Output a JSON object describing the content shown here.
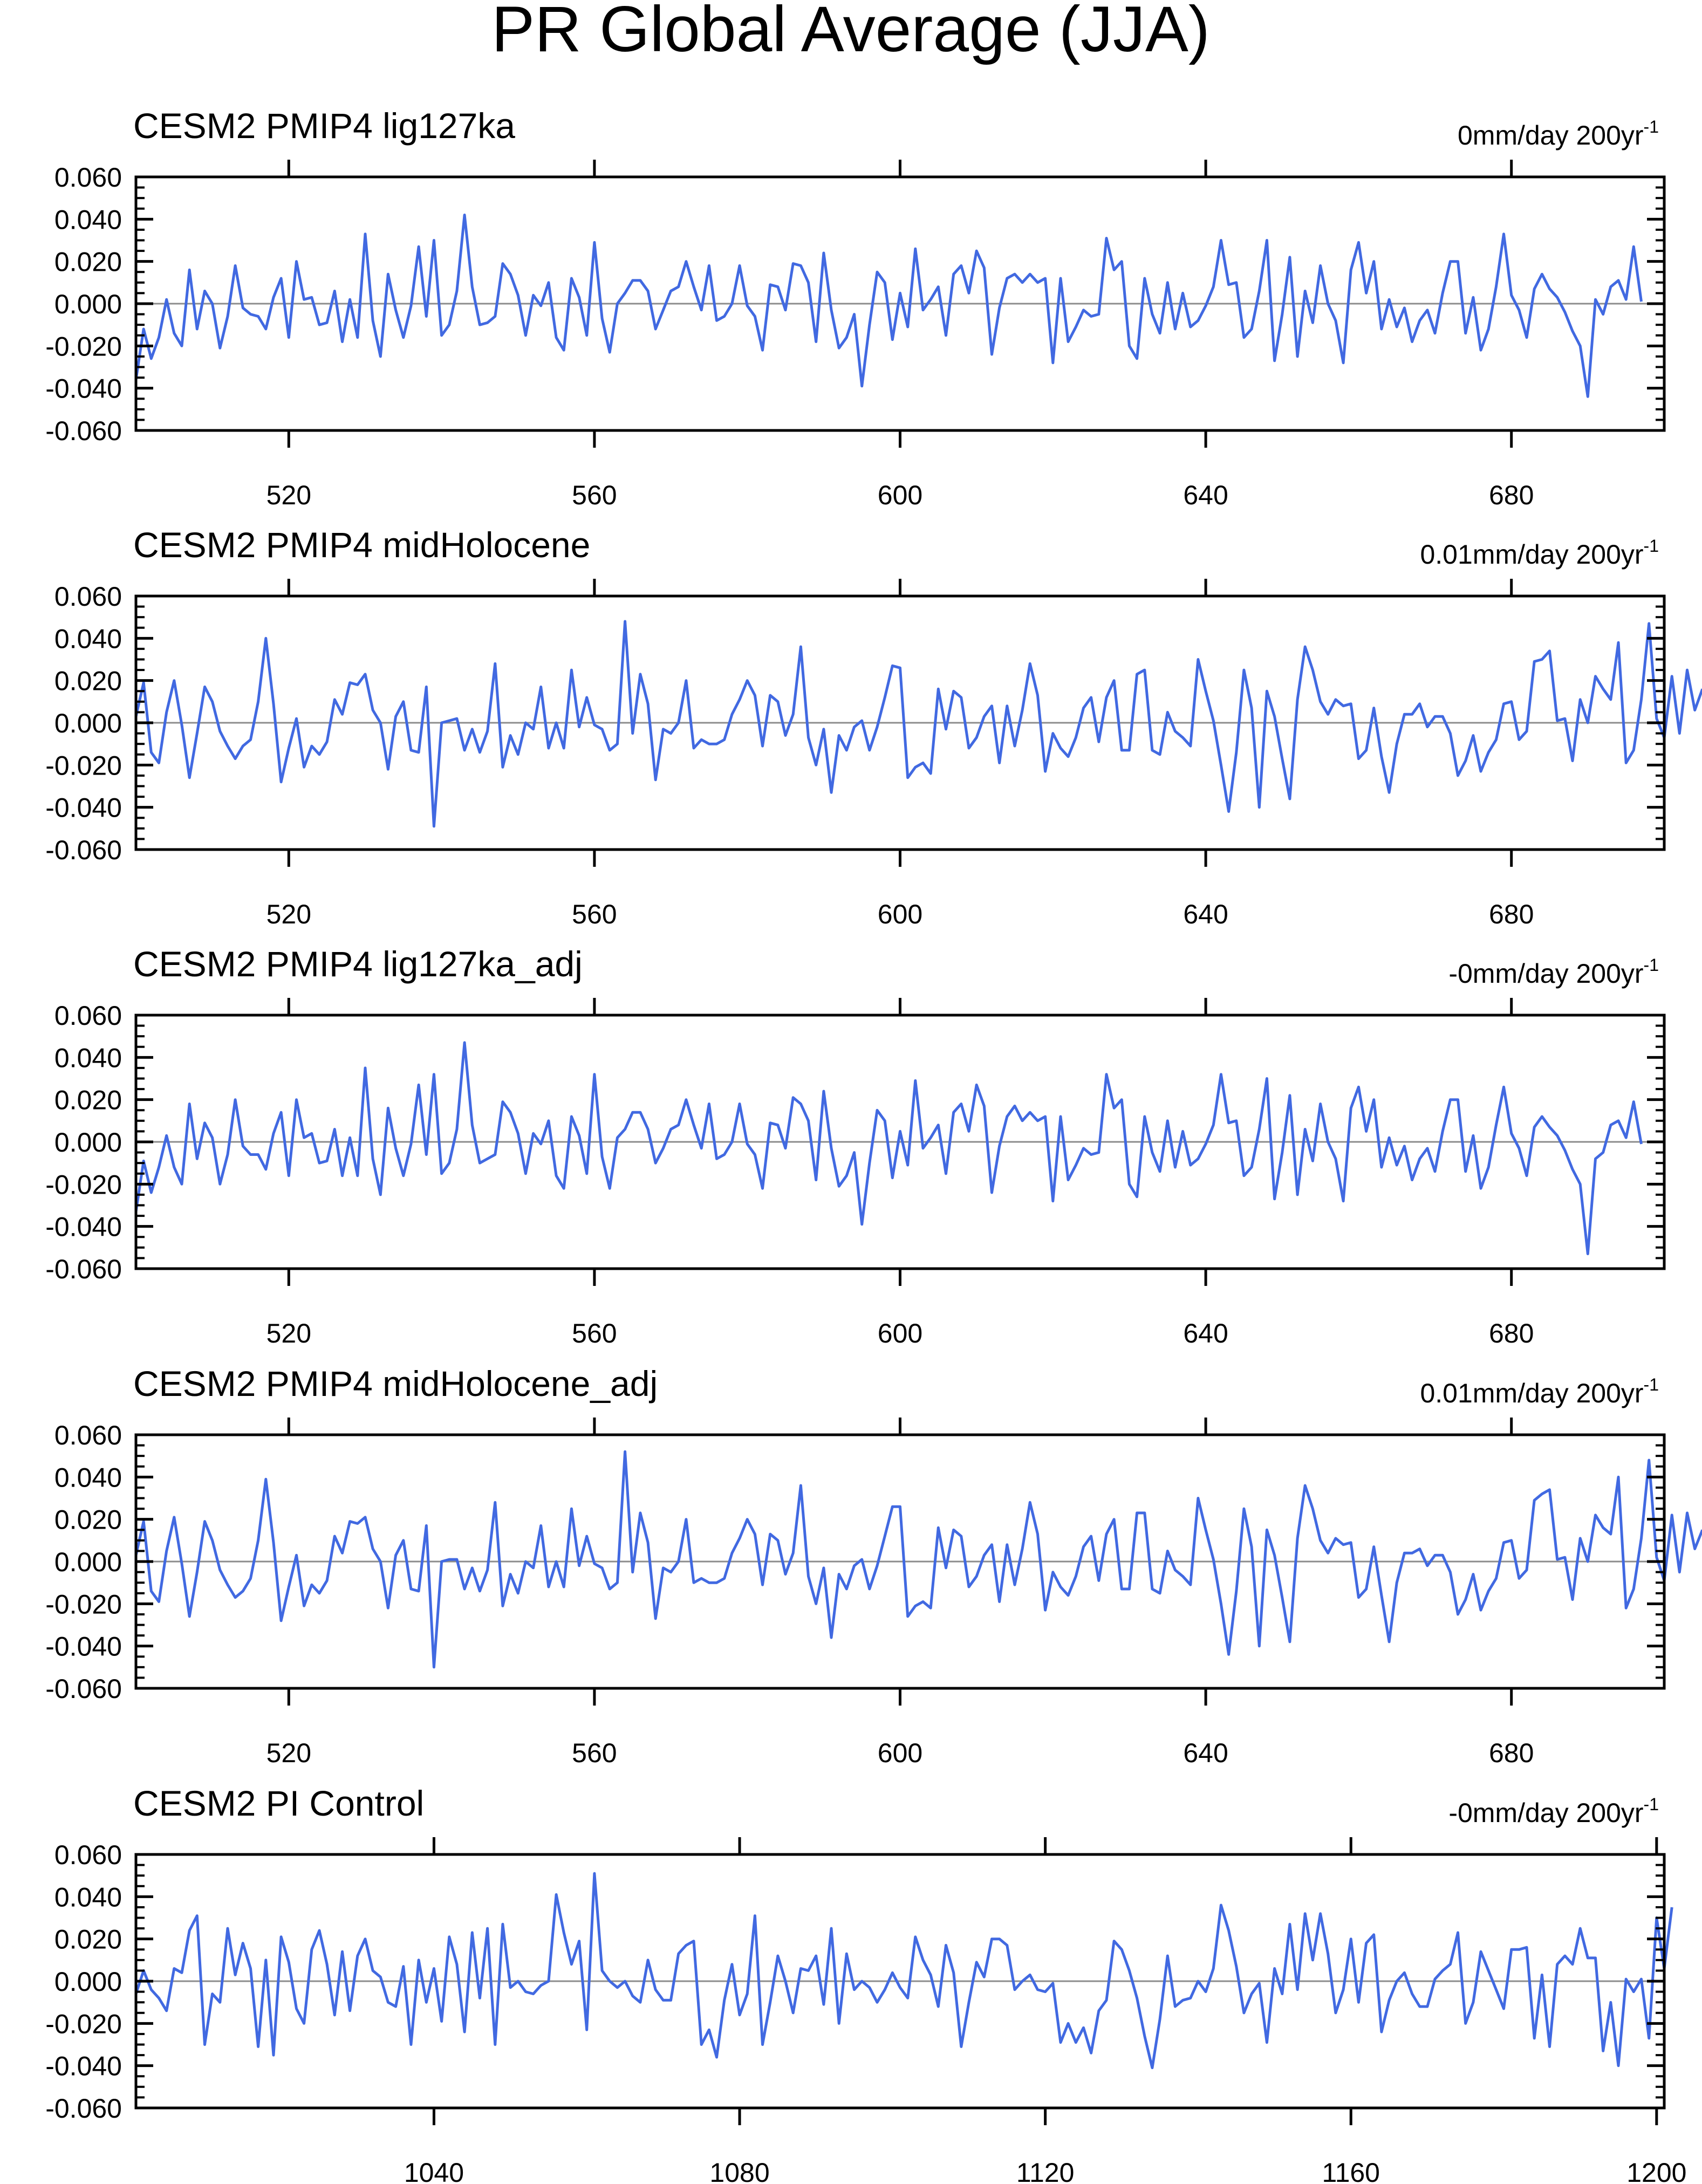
{
  "figure_title": "PR Global Average (JJA)",
  "colors": {
    "series": "#4169e1",
    "zero_line": "#8c8c8c",
    "axis": "#000000"
  },
  "chart_data": [
    {
      "type": "line",
      "title": "CESM2 PMIP4 lig127ka",
      "trend_label": {
        "value": "0mm/day 200yr",
        "exponent": "-1"
      },
      "xlim": [
        500,
        700
      ],
      "ylim": [
        -0.06,
        0.06
      ],
      "x_start": 500,
      "x_step": 1,
      "xticks": [
        520,
        560,
        600,
        640,
        680
      ],
      "yticks": [
        "0.060",
        "0.040",
        "0.020",
        "0.000",
        "-0.020",
        "-0.040",
        "-0.060"
      ],
      "values": [
        -0.036,
        -0.012,
        -0.026,
        -0.016,
        0.002,
        -0.014,
        -0.02,
        0.016,
        -0.012,
        0.006,
        0.0,
        -0.021,
        -0.006,
        0.018,
        -0.002,
        -0.005,
        -0.006,
        -0.012,
        0.003,
        0.012,
        -0.016,
        0.02,
        0.002,
        0.003,
        -0.01,
        -0.009,
        0.006,
        -0.018,
        0.002,
        -0.016,
        0.033,
        -0.008,
        -0.025,
        0.014,
        -0.003,
        -0.016,
        -0.001,
        0.027,
        -0.006,
        0.03,
        -0.015,
        -0.01,
        0.006,
        0.042,
        0.008,
        -0.01,
        -0.009,
        -0.006,
        0.019,
        0.014,
        0.004,
        -0.015,
        0.004,
        -0.001,
        0.01,
        -0.016,
        -0.022,
        0.012,
        0.003,
        -0.015,
        0.029,
        -0.007,
        -0.023,
        0.0,
        0.005,
        0.011,
        0.011,
        0.006,
        -0.012,
        -0.003,
        0.006,
        0.008,
        0.02,
        0.008,
        -0.003,
        0.018,
        -0.008,
        -0.006,
        0.0,
        0.018,
        -0.001,
        -0.006,
        -0.022,
        0.009,
        0.008,
        -0.003,
        0.019,
        0.018,
        0.01,
        -0.018,
        0.024,
        -0.003,
        -0.021,
        -0.016,
        -0.005,
        -0.039,
        -0.01,
        0.015,
        0.01,
        -0.017,
        0.005,
        -0.011,
        0.026,
        -0.003,
        0.002,
        0.008,
        -0.015,
        0.014,
        0.018,
        0.005,
        0.025,
        0.017,
        -0.024,
        -0.002,
        0.012,
        0.014,
        0.01,
        0.014,
        0.01,
        0.012,
        -0.028,
        0.012,
        -0.018,
        -0.011,
        -0.003,
        -0.006,
        -0.005,
        0.031,
        0.016,
        0.02,
        -0.02,
        -0.026,
        0.012,
        -0.005,
        -0.014,
        0.01,
        -0.012,
        0.005,
        -0.011,
        -0.008,
        -0.001,
        0.008,
        0.03,
        0.009,
        0.01,
        -0.016,
        -0.012,
        0.006,
        0.03,
        -0.027,
        -0.005,
        0.022,
        -0.025,
        0.006,
        -0.009,
        0.018,
        0.0,
        -0.008,
        -0.028,
        0.016,
        0.029,
        0.005,
        0.02,
        -0.012,
        0.002,
        -0.011,
        -0.002,
        -0.018,
        -0.008,
        -0.003,
        -0.014,
        0.005,
        0.02,
        0.02,
        -0.014,
        0.003,
        -0.022,
        -0.012,
        0.008,
        0.033,
        0.004,
        -0.003,
        -0.016,
        0.007,
        0.014,
        0.007,
        0.003,
        -0.004,
        -0.013,
        -0.02,
        -0.044,
        0.002,
        -0.005,
        0.008,
        0.011,
        0.002,
        0.027,
        0.001
      ]
    },
    {
      "type": "line",
      "title": "CESM2 PMIP4 midHolocene",
      "trend_label": {
        "value": "0.01mm/day 200yr",
        "exponent": "-1"
      },
      "xlim": [
        500,
        700
      ],
      "ylim": [
        -0.06,
        0.06
      ],
      "x_start": 500,
      "x_step": 1,
      "xticks": [
        520,
        560,
        600,
        640,
        680
      ],
      "yticks": [
        "0.060",
        "0.040",
        "0.020",
        "0.000",
        "-0.020",
        "-0.040",
        "-0.060"
      ],
      "values": [
        0.003,
        0.019,
        -0.014,
        -0.019,
        0.005,
        0.02,
        -0.001,
        -0.026,
        -0.005,
        0.017,
        0.01,
        -0.004,
        -0.011,
        -0.017,
        -0.011,
        -0.008,
        0.01,
        0.04,
        0.009,
        -0.028,
        -0.012,
        0.002,
        -0.021,
        -0.011,
        -0.015,
        -0.009,
        0.011,
        0.004,
        0.019,
        0.018,
        0.023,
        0.006,
        0.0,
        -0.022,
        0.003,
        0.01,
        -0.013,
        -0.014,
        0.017,
        -0.049,
        0.0,
        0.001,
        0.002,
        -0.013,
        -0.003,
        -0.014,
        -0.004,
        0.028,
        -0.021,
        -0.006,
        -0.015,
        0.0,
        -0.003,
        0.017,
        -0.012,
        0.0,
        -0.012,
        0.025,
        -0.002,
        0.012,
        -0.001,
        -0.003,
        -0.013,
        -0.01,
        0.048,
        -0.005,
        0.023,
        0.009,
        -0.027,
        -0.003,
        -0.005,
        0.0,
        0.02,
        -0.012,
        -0.008,
        -0.01,
        -0.01,
        -0.008,
        0.004,
        0.011,
        0.02,
        0.013,
        -0.011,
        0.013,
        0.01,
        -0.006,
        0.004,
        0.036,
        -0.007,
        -0.02,
        -0.003,
        -0.033,
        -0.006,
        -0.013,
        -0.002,
        0.001,
        -0.013,
        -0.002,
        0.012,
        0.027,
        0.026,
        -0.026,
        -0.021,
        -0.019,
        -0.024,
        0.016,
        -0.003,
        0.015,
        0.012,
        -0.012,
        -0.007,
        0.003,
        0.008,
        -0.019,
        0.008,
        -0.011,
        0.006,
        0.028,
        0.013,
        -0.023,
        -0.005,
        -0.012,
        -0.016,
        -0.007,
        0.007,
        0.012,
        -0.009,
        0.012,
        0.02,
        -0.013,
        -0.013,
        0.023,
        0.025,
        -0.013,
        -0.015,
        0.005,
        -0.004,
        -0.007,
        -0.011,
        0.03,
        0.015,
        0.001,
        -0.02,
        -0.042,
        -0.014,
        0.025,
        0.007,
        -0.04,
        0.015,
        0.003,
        -0.017,
        -0.036,
        0.011,
        0.036,
        0.025,
        0.01,
        0.004,
        0.011,
        0.008,
        0.009,
        -0.017,
        -0.013,
        0.007,
        -0.016,
        -0.033,
        -0.01,
        0.004,
        0.004,
        0.009,
        -0.002,
        0.003,
        0.003,
        -0.005,
        -0.025,
        -0.018,
        -0.006,
        -0.023,
        -0.014,
        -0.008,
        0.009,
        0.01,
        -0.008,
        -0.004,
        0.029,
        0.03,
        0.034,
        0.001,
        0.002,
        -0.018,
        0.011,
        0.0,
        0.022,
        0.016,
        0.011,
        0.038,
        -0.019,
        -0.013,
        0.011,
        0.047,
        0.002,
        -0.007,
        0.022,
        -0.005,
        0.025,
        0.006,
        0.016
      ]
    },
    {
      "type": "line",
      "title": "CESM2 PMIP4 lig127ka_adj",
      "trend_label": {
        "value": "-0mm/day 200yr",
        "exponent": "-1"
      },
      "xlim": [
        500,
        700
      ],
      "ylim": [
        -0.06,
        0.06
      ],
      "x_start": 500,
      "x_step": 1,
      "xticks": [
        520,
        560,
        600,
        640,
        680
      ],
      "yticks": [
        "0.060",
        "0.040",
        "0.020",
        "0.000",
        "-0.020",
        "-0.040",
        "-0.060"
      ],
      "values": [
        -0.033,
        -0.009,
        -0.024,
        -0.012,
        0.003,
        -0.012,
        -0.02,
        0.018,
        -0.008,
        0.009,
        0.002,
        -0.02,
        -0.006,
        0.02,
        -0.002,
        -0.006,
        -0.006,
        -0.013,
        0.004,
        0.014,
        -0.016,
        0.02,
        0.002,
        0.004,
        -0.01,
        -0.009,
        0.006,
        -0.016,
        0.002,
        -0.016,
        0.035,
        -0.008,
        -0.025,
        0.016,
        -0.003,
        -0.016,
        -0.001,
        0.027,
        -0.006,
        0.032,
        -0.015,
        -0.01,
        0.006,
        0.047,
        0.008,
        -0.01,
        -0.008,
        -0.006,
        0.019,
        0.014,
        0.004,
        -0.015,
        0.004,
        -0.001,
        0.01,
        -0.016,
        -0.022,
        0.012,
        0.003,
        -0.015,
        0.032,
        -0.007,
        -0.022,
        0.002,
        0.006,
        0.014,
        0.014,
        0.006,
        -0.01,
        -0.003,
        0.006,
        0.008,
        0.02,
        0.008,
        -0.003,
        0.018,
        -0.008,
        -0.006,
        0.0,
        0.018,
        -0.001,
        -0.006,
        -0.022,
        0.009,
        0.008,
        -0.003,
        0.021,
        0.018,
        0.01,
        -0.018,
        0.024,
        -0.003,
        -0.021,
        -0.016,
        -0.005,
        -0.039,
        -0.01,
        0.015,
        0.01,
        -0.017,
        0.005,
        -0.011,
        0.029,
        -0.003,
        0.002,
        0.008,
        -0.015,
        0.014,
        0.018,
        0.005,
        0.027,
        0.017,
        -0.024,
        -0.002,
        0.012,
        0.017,
        0.01,
        0.014,
        0.01,
        0.012,
        -0.028,
        0.012,
        -0.018,
        -0.011,
        -0.003,
        -0.006,
        -0.005,
        0.032,
        0.016,
        0.02,
        -0.02,
        -0.026,
        0.012,
        -0.005,
        -0.014,
        0.01,
        -0.012,
        0.005,
        -0.011,
        -0.008,
        -0.001,
        0.008,
        0.032,
        0.009,
        0.01,
        -0.016,
        -0.012,
        0.006,
        0.03,
        -0.027,
        -0.005,
        0.022,
        -0.025,
        0.006,
        -0.009,
        0.018,
        0.0,
        -0.008,
        -0.028,
        0.016,
        0.026,
        0.005,
        0.02,
        -0.012,
        0.002,
        -0.011,
        -0.002,
        -0.018,
        -0.008,
        -0.003,
        -0.014,
        0.005,
        0.02,
        0.02,
        -0.014,
        0.003,
        -0.022,
        -0.012,
        0.008,
        0.026,
        0.004,
        -0.003,
        -0.016,
        0.007,
        0.012,
        0.007,
        0.003,
        -0.004,
        -0.013,
        -0.02,
        -0.053,
        -0.008,
        -0.005,
        0.008,
        0.01,
        0.002,
        0.019,
        -0.001
      ]
    },
    {
      "type": "line",
      "title": "CESM2 PMIP4 midHolocene_adj",
      "trend_label": {
        "value": "0.01mm/day 200yr",
        "exponent": "-1"
      },
      "xlim": [
        500,
        700
      ],
      "ylim": [
        -0.06,
        0.06
      ],
      "x_start": 500,
      "x_step": 1,
      "xticks": [
        520,
        560,
        600,
        640,
        680
      ],
      "yticks": [
        "0.060",
        "0.040",
        "0.020",
        "0.000",
        "-0.020",
        "-0.040",
        "-0.060"
      ],
      "values": [
        0.003,
        0.019,
        -0.014,
        -0.019,
        0.005,
        0.021,
        -0.001,
        -0.026,
        -0.005,
        0.019,
        0.01,
        -0.004,
        -0.011,
        -0.017,
        -0.014,
        -0.008,
        0.01,
        0.039,
        0.009,
        -0.028,
        -0.012,
        0.003,
        -0.021,
        -0.011,
        -0.015,
        -0.009,
        0.012,
        0.004,
        0.019,
        0.018,
        0.021,
        0.006,
        0.0,
        -0.022,
        0.003,
        0.01,
        -0.013,
        -0.014,
        0.017,
        -0.05,
        0.0,
        0.001,
        0.001,
        -0.013,
        -0.003,
        -0.014,
        -0.004,
        0.028,
        -0.021,
        -0.006,
        -0.015,
        0.0,
        -0.003,
        0.017,
        -0.012,
        0.0,
        -0.012,
        0.025,
        -0.002,
        0.012,
        -0.001,
        -0.003,
        -0.013,
        -0.01,
        0.052,
        -0.005,
        0.023,
        0.009,
        -0.027,
        -0.003,
        -0.005,
        0.0,
        0.02,
        -0.01,
        -0.008,
        -0.01,
        -0.01,
        -0.008,
        0.004,
        0.011,
        0.02,
        0.013,
        -0.011,
        0.013,
        0.01,
        -0.006,
        0.004,
        0.036,
        -0.007,
        -0.02,
        -0.003,
        -0.036,
        -0.006,
        -0.013,
        -0.002,
        0.001,
        -0.013,
        -0.002,
        0.012,
        0.026,
        0.026,
        -0.026,
        -0.021,
        -0.019,
        -0.022,
        0.016,
        -0.003,
        0.015,
        0.012,
        -0.012,
        -0.007,
        0.003,
        0.008,
        -0.019,
        0.008,
        -0.011,
        0.006,
        0.028,
        0.013,
        -0.023,
        -0.005,
        -0.012,
        -0.016,
        -0.007,
        0.007,
        0.012,
        -0.009,
        0.013,
        0.02,
        -0.013,
        -0.013,
        0.023,
        0.023,
        -0.013,
        -0.015,
        0.005,
        -0.004,
        -0.007,
        -0.011,
        0.03,
        0.015,
        0.001,
        -0.02,
        -0.044,
        -0.014,
        0.025,
        0.007,
        -0.04,
        0.015,
        0.003,
        -0.017,
        -0.038,
        0.011,
        0.036,
        0.025,
        0.01,
        0.004,
        0.011,
        0.008,
        0.009,
        -0.017,
        -0.013,
        0.007,
        -0.016,
        -0.038,
        -0.01,
        0.004,
        0.004,
        0.006,
        -0.002,
        0.003,
        0.003,
        -0.005,
        -0.025,
        -0.018,
        -0.006,
        -0.023,
        -0.014,
        -0.008,
        0.009,
        0.01,
        -0.008,
        -0.004,
        0.029,
        0.032,
        0.034,
        0.001,
        0.002,
        -0.018,
        0.011,
        0.0,
        0.022,
        0.016,
        0.013,
        0.04,
        -0.022,
        -0.013,
        0.011,
        0.048,
        0.002,
        -0.009,
        0.022,
        -0.005,
        0.023,
        0.006,
        0.015
      ]
    },
    {
      "type": "line",
      "title": "CESM2 PI Control",
      "trend_label": {
        "value": "-0mm/day 200yr",
        "exponent": "-1"
      },
      "xlim": [
        1001,
        1201
      ],
      "ylim": [
        -0.06,
        0.06
      ],
      "x_start": 1001,
      "x_step": 1,
      "xticks": [
        1040,
        1080,
        1120,
        1160,
        1200
      ],
      "yticks": [
        "0.060",
        "0.040",
        "0.020",
        "0.000",
        "-0.020",
        "-0.040",
        "-0.060"
      ],
      "values": [
        -0.006,
        0.005,
        -0.004,
        -0.008,
        -0.014,
        0.006,
        0.004,
        0.024,
        0.031,
        -0.03,
        -0.006,
        -0.01,
        0.025,
        0.003,
        0.018,
        0.006,
        -0.031,
        0.01,
        -0.035,
        0.021,
        0.009,
        -0.013,
        -0.02,
        0.015,
        0.024,
        0.008,
        -0.016,
        0.014,
        -0.014,
        0.012,
        0.02,
        0.005,
        0.002,
        -0.01,
        -0.012,
        0.007,
        -0.03,
        0.01,
        -0.01,
        0.006,
        -0.019,
        0.021,
        0.008,
        -0.024,
        0.023,
        -0.008,
        0.025,
        -0.03,
        0.027,
        -0.003,
        0.0,
        -0.005,
        -0.006,
        -0.002,
        0.0,
        0.041,
        0.023,
        0.008,
        0.019,
        -0.023,
        0.051,
        0.005,
        0.0,
        -0.003,
        0.0,
        -0.007,
        -0.01,
        0.01,
        -0.004,
        -0.009,
        -0.009,
        0.013,
        0.017,
        0.019,
        -0.03,
        -0.023,
        -0.036,
        -0.009,
        0.008,
        -0.016,
        -0.006,
        0.031,
        -0.03,
        -0.01,
        0.012,
        0.0,
        -0.015,
        0.006,
        0.005,
        0.012,
        -0.011,
        0.025,
        -0.02,
        0.013,
        -0.004,
        0.0,
        -0.003,
        -0.01,
        -0.004,
        0.004,
        -0.003,
        -0.008,
        0.021,
        0.01,
        0.003,
        -0.012,
        0.017,
        0.004,
        -0.031,
        -0.01,
        0.009,
        0.002,
        0.02,
        0.02,
        0.017,
        -0.004,
        0.0,
        0.003,
        -0.004,
        -0.005,
        -0.001,
        -0.029,
        -0.02,
        -0.029,
        -0.022,
        -0.034,
        -0.014,
        -0.009,
        0.019,
        0.015,
        0.005,
        -0.008,
        -0.026,
        -0.041,
        -0.018,
        0.012,
        -0.012,
        -0.009,
        -0.008,
        0.0,
        -0.005,
        0.006,
        0.036,
        0.024,
        0.007,
        -0.015,
        -0.006,
        -0.001,
        -0.029,
        0.006,
        -0.006,
        0.027,
        -0.004,
        0.032,
        0.01,
        0.032,
        0.013,
        -0.015,
        -0.004,
        0.02,
        -0.01,
        0.018,
        0.022,
        -0.024,
        -0.009,
        0.0,
        0.004,
        -0.006,
        -0.012,
        -0.012,
        0.001,
        0.005,
        0.008,
        0.023,
        -0.02,
        -0.01,
        0.014,
        0.005,
        -0.004,
        -0.013,
        0.015,
        0.015,
        0.016,
        -0.027,
        0.003,
        -0.031,
        0.008,
        0.012,
        0.008,
        0.025,
        0.011,
        0.011,
        -0.033,
        -0.01,
        -0.04,
        0.001,
        -0.005,
        0.001,
        -0.027,
        0.03,
        0.006,
        0.035
      ]
    }
  ]
}
